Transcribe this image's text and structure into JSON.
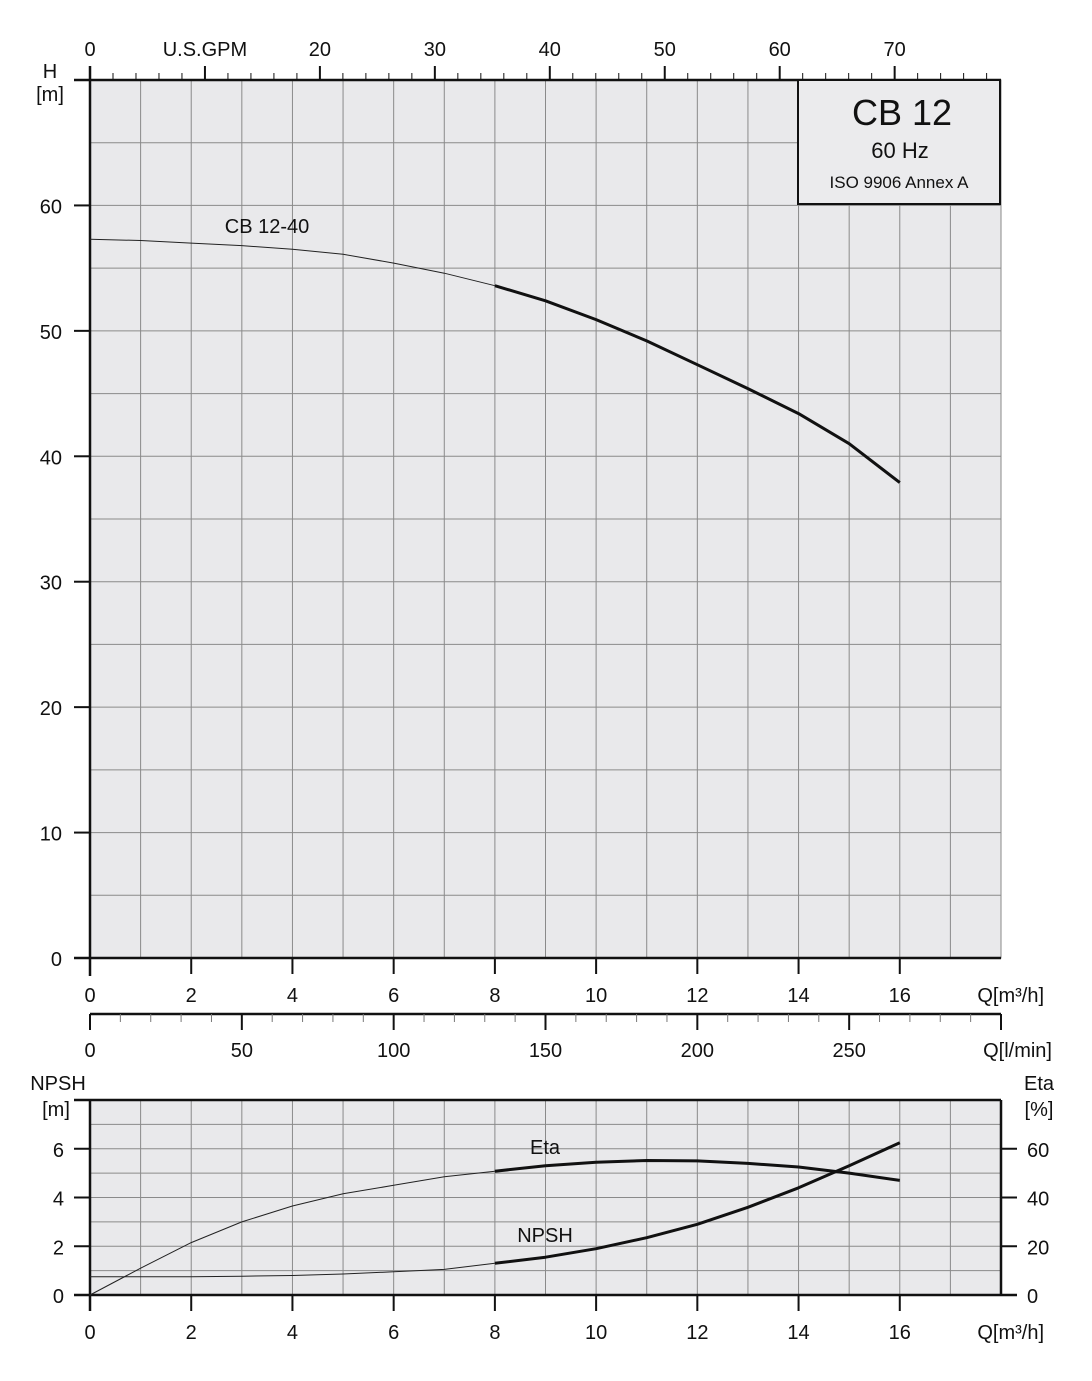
{
  "chart_data": [
    {
      "type": "line",
      "title_box": {
        "model": "CB 12",
        "frequency": "60 Hz",
        "standard": "ISO 9906 Annex A"
      },
      "ylabel": "H",
      "yunit": "[m]",
      "xlabel": "Q[m³/h]",
      "xlim": [
        0,
        18
      ],
      "ylim": [
        0,
        70
      ],
      "xticks": [
        0,
        2,
        4,
        6,
        8,
        10,
        12,
        14,
        16
      ],
      "yticks": [
        0,
        10,
        20,
        30,
        40,
        50,
        60
      ],
      "top_axis": {
        "label": "U.S.GPM",
        "ticks": [
          0,
          20,
          30,
          40,
          50,
          60,
          70
        ]
      },
      "secondary_axis": {
        "label": "Q[l/min]",
        "ticks": [
          0,
          50,
          100,
          150,
          200,
          250
        ]
      },
      "grid": true,
      "series": [
        {
          "name": "CB 12-40",
          "x": [
            0,
            1,
            2,
            3,
            4,
            5,
            6,
            7,
            8,
            9,
            10,
            11,
            12,
            13,
            14,
            15,
            16
          ],
          "y": [
            57.3,
            57.2,
            57.0,
            56.8,
            56.5,
            56.1,
            55.4,
            54.6,
            53.6,
            52.4,
            50.9,
            49.2,
            47.3,
            45.4,
            43.4,
            41.0,
            37.9
          ],
          "bold_from": 8
        }
      ]
    },
    {
      "type": "line",
      "ylabel": "NPSH",
      "yunit": "[m]",
      "y2label": "Eta",
      "y2unit": "[%]",
      "xlabel": "Q[m³/h]",
      "xlim": [
        0,
        18
      ],
      "ylim": [
        0,
        8
      ],
      "y2lim": [
        0,
        80
      ],
      "xticks": [
        0,
        2,
        4,
        6,
        8,
        10,
        12,
        14,
        16
      ],
      "yticks": [
        0,
        2,
        4,
        6
      ],
      "y2ticks": [
        0,
        20,
        40,
        60
      ],
      "grid": true,
      "series": [
        {
          "name": "Eta",
          "axis": "right",
          "x": [
            0,
            1,
            2,
            3,
            4,
            5,
            6,
            7,
            8,
            9,
            10,
            11,
            12,
            13,
            14,
            15,
            16
          ],
          "y": [
            0,
            11,
            21.5,
            30,
            36.5,
            41.5,
            45,
            48.5,
            50.8,
            53,
            54.5,
            55.2,
            55,
            54,
            52.5,
            50,
            47
          ],
          "bold_from": 8
        },
        {
          "name": "NPSH",
          "axis": "left",
          "x": [
            0,
            1,
            2,
            3,
            4,
            5,
            6,
            7,
            8,
            9,
            10,
            11,
            12,
            13,
            14,
            15,
            16
          ],
          "y": [
            0.75,
            0.75,
            0.75,
            0.77,
            0.8,
            0.86,
            0.95,
            1.05,
            1.3,
            1.55,
            1.9,
            2.35,
            2.9,
            3.6,
            4.4,
            5.3,
            6.25
          ],
          "bold_from": 8
        }
      ]
    }
  ]
}
